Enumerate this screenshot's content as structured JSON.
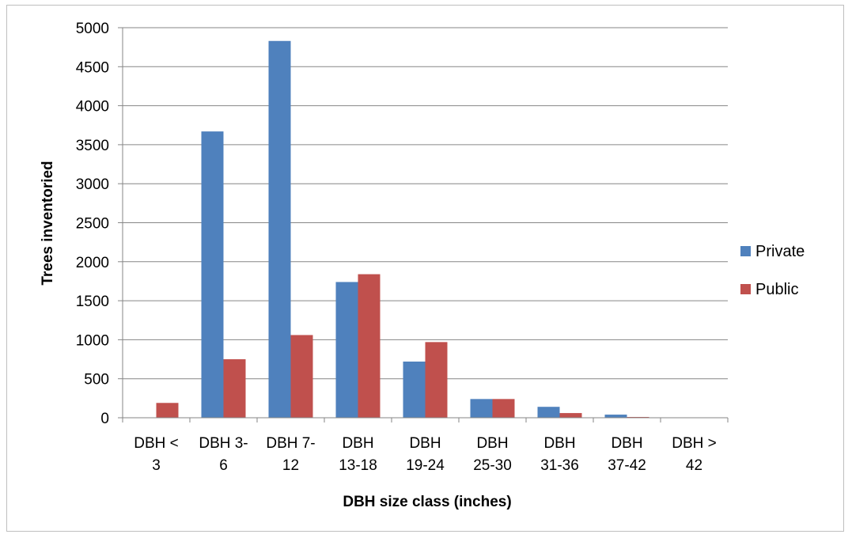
{
  "chart_data": {
    "type": "bar",
    "title": "",
    "xlabel": "DBH size class (inches)",
    "ylabel": "Trees inventoried",
    "ylim": [
      0,
      5000
    ],
    "yticks": [
      0,
      500,
      1000,
      1500,
      2000,
      2500,
      3000,
      3500,
      4000,
      4500,
      5000
    ],
    "grid": "horizontal",
    "legend_position": "right",
    "categories": [
      [
        "DBH <",
        "3"
      ],
      [
        "DBH 3-",
        "6"
      ],
      [
        "DBH 7-",
        "12"
      ],
      [
        "DBH",
        "13-18"
      ],
      [
        "DBH",
        "19-24"
      ],
      [
        "DBH",
        "25-30"
      ],
      [
        "DBH",
        "31-36"
      ],
      [
        "DBH",
        "37-42"
      ],
      [
        "DBH >",
        "42"
      ]
    ],
    "series": [
      {
        "name": "Private",
        "color": "#4f81bd",
        "values": [
          0,
          3670,
          4830,
          1740,
          720,
          240,
          140,
          40,
          3
        ]
      },
      {
        "name": "Public",
        "color": "#c0504d",
        "values": [
          190,
          750,
          1060,
          1840,
          970,
          240,
          60,
          10,
          2
        ]
      }
    ]
  }
}
